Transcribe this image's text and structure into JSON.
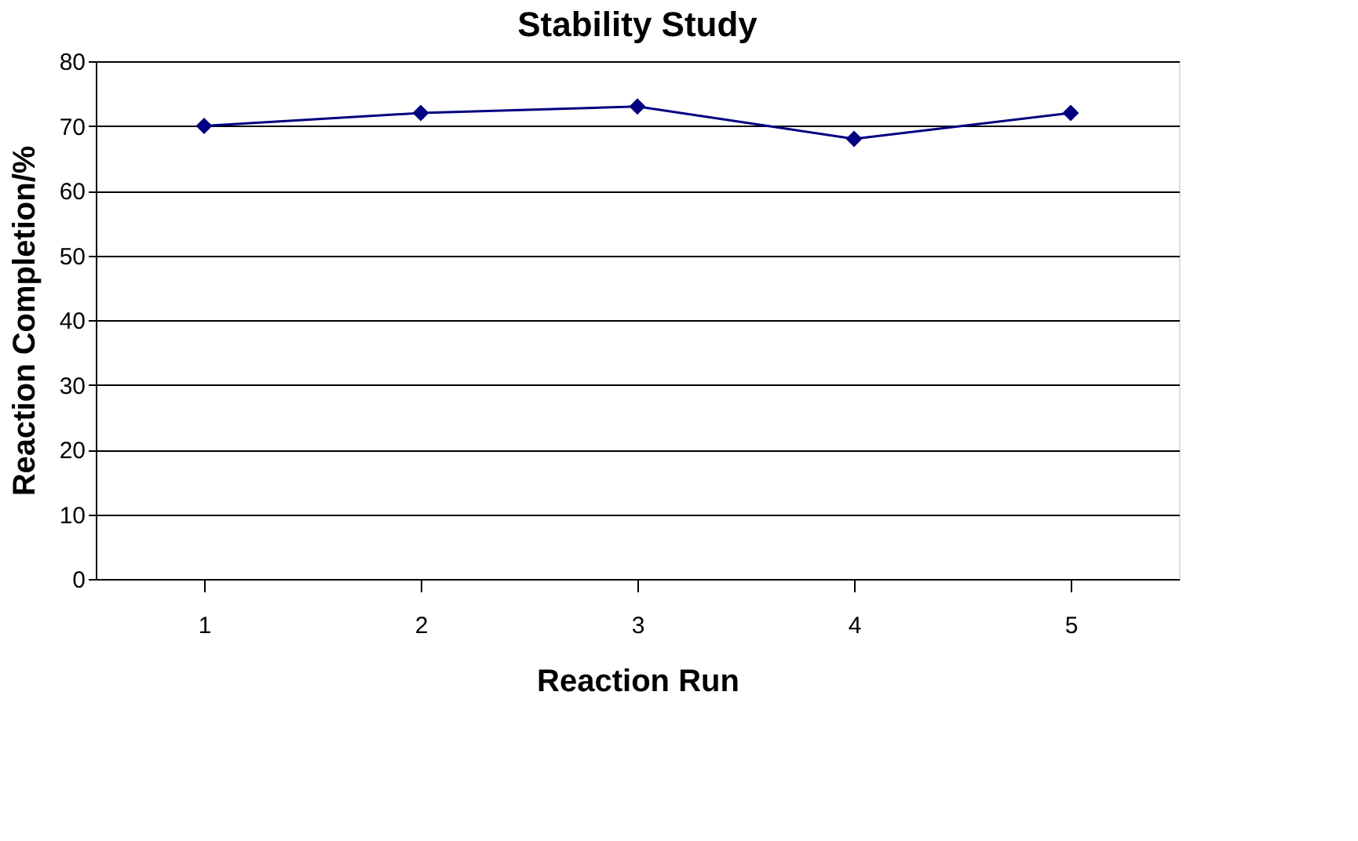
{
  "chart_data": {
    "type": "line",
    "title": "Stability Study",
    "xlabel": "Reaction Run",
    "ylabel": "Reaction Completion/%",
    "categories": [
      "1",
      "2",
      "3",
      "4",
      "5"
    ],
    "series": [
      {
        "color": "#000080",
        "values": [
          70,
          72,
          73,
          68,
          72
        ]
      }
    ],
    "ylim": [
      0,
      80
    ],
    "yticks": [
      0,
      10,
      20,
      30,
      40,
      50,
      60,
      70,
      80
    ],
    "grid": "y",
    "marker": "diamond",
    "line_style": "solid",
    "legend": false
  }
}
